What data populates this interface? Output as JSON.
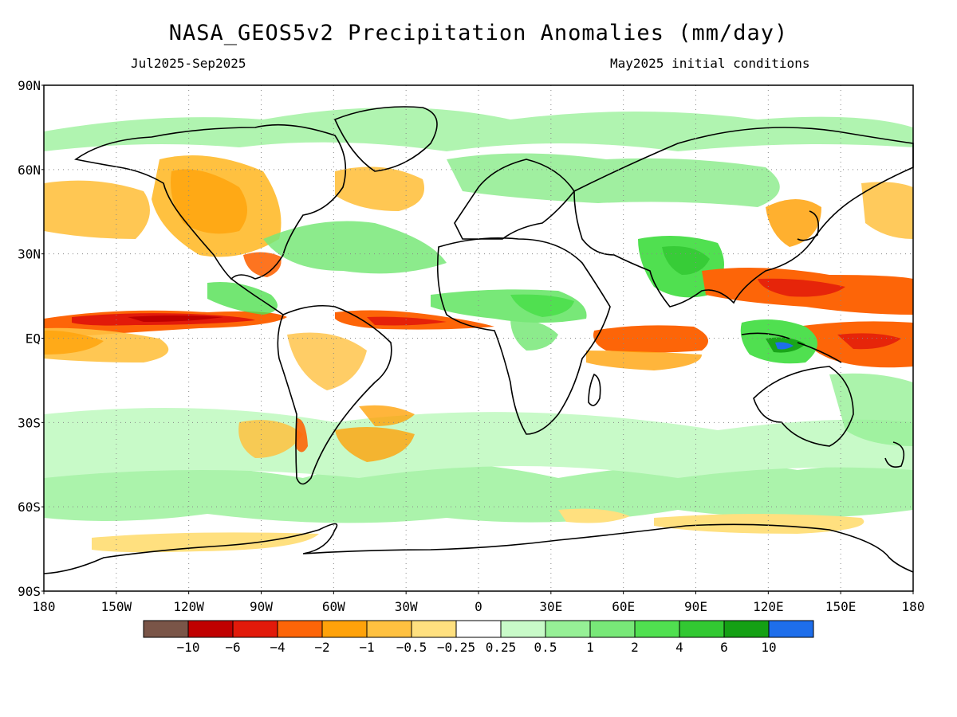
{
  "header": {
    "title": "NASA_GEOS5v2 Precipitation Anomalies (mm/day)",
    "period": "Jul2025-Sep2025",
    "init": "May2025 initial conditions"
  },
  "axes": {
    "lat_labels": [
      "90N",
      "60N",
      "30N",
      "EQ",
      "30S",
      "60S",
      "90S"
    ],
    "lon_labels": [
      "180",
      "150W",
      "120W",
      "90W",
      "60W",
      "30W",
      "0",
      "30E",
      "60E",
      "90E",
      "120E",
      "150E",
      "180"
    ]
  },
  "colorbar": {
    "colors": [
      "#7a5548",
      "#c00000",
      "#e21a0a",
      "#fd6508",
      "#ffa20a",
      "#ffc140",
      "#ffe07f",
      "#ffffff",
      "#c8fac8",
      "#96f096",
      "#78e878",
      "#50e050",
      "#32c832",
      "#14a014",
      "#1e6eeb"
    ],
    "labels": [
      "-10",
      "-6",
      "-4",
      "-2",
      "-1",
      "-0.5",
      "-0.25",
      "0.25",
      "0.5",
      "1",
      "2",
      "4",
      "6",
      "10"
    ]
  },
  "chart_data": {
    "type": "heatmap",
    "title": "NASA_GEOS5v2 Precipitation Anomalies (mm/day)",
    "subtitle": [
      "Jul2025-Sep2025",
      "May2025 initial conditions"
    ],
    "xlim": [
      -180,
      180
    ],
    "ylim": [
      -90,
      90
    ],
    "x_ticks": [
      -180,
      -150,
      -120,
      -90,
      -60,
      -30,
      0,
      30,
      60,
      90,
      120,
      150,
      180
    ],
    "y_ticks": [
      -90,
      -60,
      -30,
      0,
      30,
      60,
      90
    ],
    "grid": true,
    "levels": [
      -10,
      -6,
      -4,
      -2,
      -1,
      -0.5,
      -0.25,
      0.25,
      0.5,
      1,
      2,
      4,
      6,
      10
    ],
    "regions": [
      {
        "lon": [
          -180,
          -80
        ],
        "lat": [
          3,
          10
        ],
        "value": -4
      },
      {
        "lon": [
          -40,
          -10
        ],
        "lat": [
          3,
          7
        ],
        "value": -4
      },
      {
        "lon": [
          -180,
          -100
        ],
        "lat": [
          -5,
          3
        ],
        "value": -2
      },
      {
        "lon": [
          50,
          180
        ],
        "lat": [
          -5,
          5
        ],
        "value": -2
      },
      {
        "lon": [
          100,
          180
        ],
        "lat": [
          10,
          20
        ],
        "value": -2
      },
      {
        "lon": [
          -130,
          -60
        ],
        "lat": [
          30,
          60
        ],
        "value": -1
      },
      {
        "lon": [
          -60,
          20
        ],
        "lat": [
          3,
          15
        ],
        "value": 1
      },
      {
        "lon": [
          60,
          110
        ],
        "lat": [
          15,
          30
        ],
        "value": 2
      },
      {
        "lon": [
          123,
          130
        ],
        "lat": [
          -7,
          -3
        ],
        "value": 10
      }
    ]
  }
}
